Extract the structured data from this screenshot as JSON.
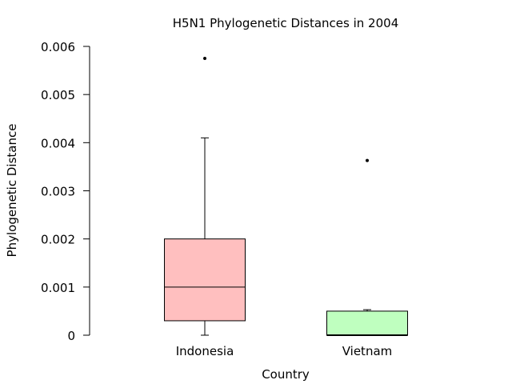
{
  "chart_data": {
    "type": "box",
    "title": "H5N1 Phylogenetic Distances in 2004",
    "xlabel": "Country",
    "ylabel": "Phylogenetic Distance",
    "ylim": [
      0,
      0.006
    ],
    "yticks": [
      0,
      0.001,
      0.002,
      0.003,
      0.004,
      0.005,
      0.006
    ],
    "ytick_labels": [
      "0",
      "0.001",
      "0.002",
      "0.003",
      "0.004",
      "0.005",
      "0.006"
    ],
    "grid": false,
    "categories": [
      "Indonesia",
      "Vietnam"
    ],
    "boxes": [
      {
        "category": "Indonesia",
        "whisker_low": 0.0,
        "q1": 0.0003,
        "median": 0.001,
        "q3": 0.002,
        "whisker_high": 0.0041,
        "outliers": [
          0.00575
        ],
        "color": "#ffbfbf"
      },
      {
        "category": "Vietnam",
        "whisker_low": 0.0,
        "q1": 0.0,
        "median": 0.0,
        "q3": 0.0005,
        "whisker_high": 0.00053,
        "outliers": [
          0.00363
        ],
        "color": "#bfffbf"
      }
    ]
  }
}
